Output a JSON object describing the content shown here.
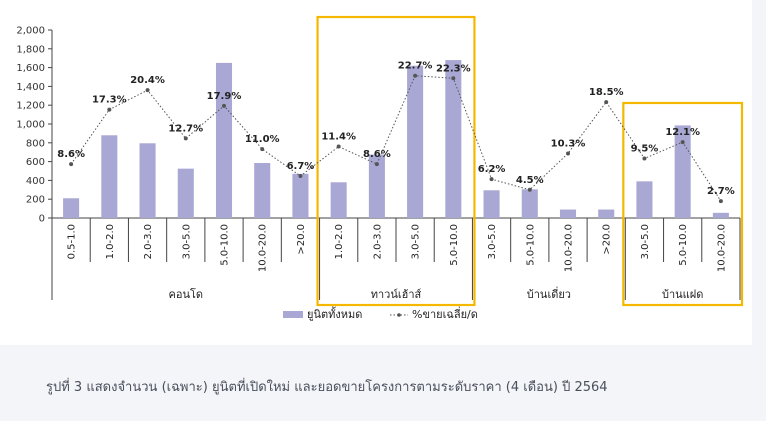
{
  "caption": "รูปที่ 3 แสดงจำนวน (เฉพาะ) ยูนิตที่เปิดใหม่ และยอดขายโครงการตามระดับราคา (4 เดือน) ปี 2564",
  "colors": {
    "bar": "#a9a8d4",
    "line": "#555555",
    "highlight": "#f5b800",
    "axis": "#444444"
  },
  "chart_data": {
    "type": "bar",
    "title": "",
    "xlabel": "",
    "ylabel": "",
    "ylim": [
      0,
      2000
    ],
    "yticks": [
      "0",
      "200",
      "400",
      "600",
      "800",
      "1,000",
      "1,200",
      "1,400",
      "1,600",
      "1,800",
      "2,000"
    ],
    "ytick_values": [
      0,
      200,
      400,
      600,
      800,
      1000,
      1200,
      1400,
      1600,
      1800,
      2000
    ],
    "groups": [
      {
        "name": "คอนโด",
        "categories": [
          "0.5-1.0",
          "1.0-2.0",
          "2.0-3.0",
          "3.0-5.0",
          "5.0-10.0",
          "10.0-20.0",
          ">20.0"
        ],
        "highlighted": false
      },
      {
        "name": "ทาวน์เฮ้าส์",
        "categories": [
          "1.0-2.0",
          "2.0-3.0",
          "3.0-5.0",
          "5.0-10.0"
        ],
        "highlighted": true
      },
      {
        "name": "บ้านเดี่ยว",
        "categories": [
          "3.0-5.0",
          "5.0-10.0",
          "10.0-20.0",
          ">20.0"
        ],
        "highlighted": false
      },
      {
        "name": "บ้านแฝด",
        "categories": [
          "3.0-5.0",
          "5.0-10.0",
          "10.0-20.0"
        ],
        "highlighted": true
      }
    ],
    "series": [
      {
        "name": "ยูนิตทั้งหมด",
        "type": "bar",
        "values": [
          210,
          880,
          795,
          525,
          1650,
          585,
          470,
          380,
          675,
          1620,
          1680,
          295,
          305,
          90,
          90,
          390,
          985,
          55
        ]
      },
      {
        "name": "%ขายเฉลี่ย/ด",
        "type": "line",
        "values": [
          8.6,
          17.3,
          20.4,
          12.7,
          17.9,
          11.0,
          6.7,
          11.4,
          8.6,
          22.7,
          22.3,
          6.2,
          4.5,
          10.3,
          18.5,
          9.5,
          12.1,
          2.7
        ],
        "labels": [
          "8.6%",
          "17.3%",
          "20.4%",
          "12.7%",
          "17.9%",
          "11.0%",
          "6.7%",
          "11.4%",
          "8.6%",
          "22.7%",
          "22.3%",
          "6.2%",
          "4.5%",
          "10.3%",
          "18.5%",
          "9.5%",
          "12.1%",
          "2.7%"
        ]
      }
    ],
    "legend": {
      "position": "bottom-center",
      "entries": [
        "ยูนิตทั้งหมด",
        "%ขายเฉลี่ย/ด"
      ]
    }
  }
}
